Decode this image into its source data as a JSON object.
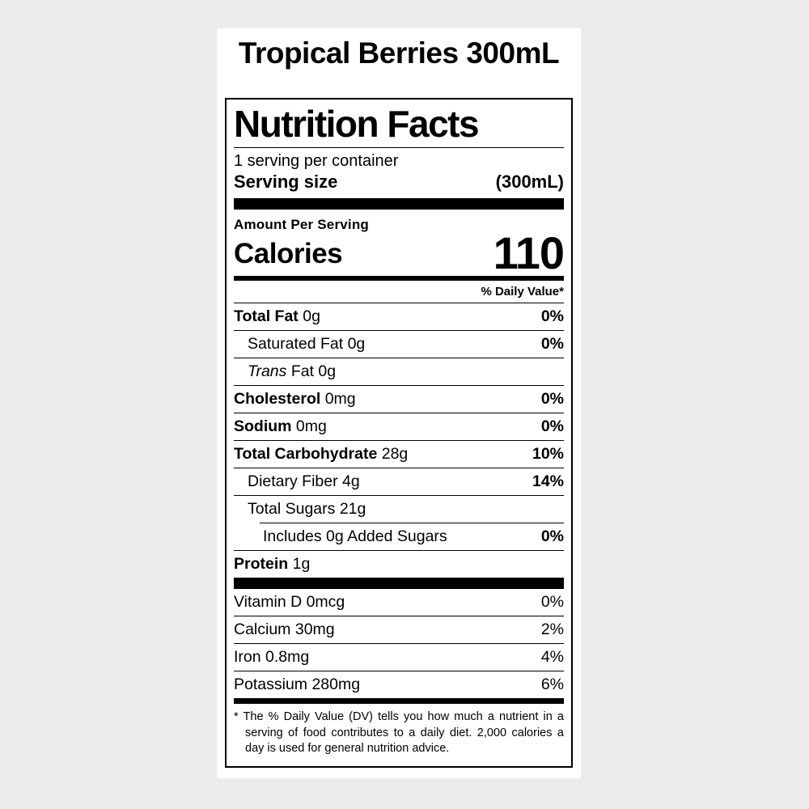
{
  "colors": {
    "page_background": "#ebebeb",
    "card_background": "#ffffff",
    "ink": "#000000"
  },
  "product": {
    "title": "Tropical Berries 300mL"
  },
  "label": {
    "heading": "Nutrition Facts",
    "servings_per_container": "1 serving per container",
    "serving_size_label": "Serving size",
    "serving_size_value": "(300mL)",
    "amount_per_serving": "Amount Per Serving",
    "calories_label": "Calories",
    "calories_value": "110",
    "daily_value_header": "% Daily Value*",
    "nutrients": [
      {
        "name": "Total Fat",
        "amount": "0g",
        "dv": "0%",
        "bold": true,
        "indent": 0
      },
      {
        "name": "Saturated Fat",
        "amount": "0g",
        "dv": "0%",
        "bold": false,
        "indent": 1
      },
      {
        "name_italic": "Trans",
        "name": "Fat",
        "amount": "0g",
        "dv": "",
        "bold": false,
        "indent": 1
      },
      {
        "name": "Cholesterol",
        "amount": "0mg",
        "dv": "0%",
        "bold": true,
        "indent": 0
      },
      {
        "name": "Sodium",
        "amount": "0mg",
        "dv": "0%",
        "bold": true,
        "indent": 0
      },
      {
        "name": "Total Carbohydrate",
        "amount": "28g",
        "dv": "10%",
        "bold": true,
        "indent": 0
      },
      {
        "name": "Dietary Fiber",
        "amount": "4g",
        "dv": "14%",
        "bold": false,
        "indent": 1
      },
      {
        "name": "Total Sugars",
        "amount": "21g",
        "dv": "",
        "bold": false,
        "indent": 1
      },
      {
        "name": "Includes 0g Added Sugars",
        "amount": "",
        "dv": "0%",
        "bold": false,
        "indent": 2,
        "indented_rule": true
      },
      {
        "name": "Protein",
        "amount": "1g",
        "dv": "",
        "bold": true,
        "indent": 0
      }
    ],
    "vitamins": [
      {
        "name": "Vitamin D",
        "amount": "0mcg",
        "dv": "0%"
      },
      {
        "name": "Calcium",
        "amount": "30mg",
        "dv": "2%"
      },
      {
        "name": "Iron",
        "amount": "0.8mg",
        "dv": "4%"
      },
      {
        "name": "Potassium",
        "amount": "280mg",
        "dv": "6%"
      }
    ],
    "footnote_marker": "*",
    "footnote_text": "The % Daily Value (DV) tells you how much a nutrient in a serving of food contributes to a daily diet. 2,000 calories a day is used for general nutrition advice."
  }
}
